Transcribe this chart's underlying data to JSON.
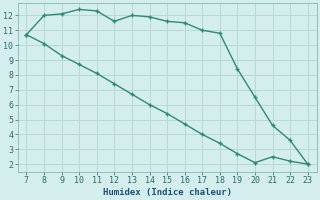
{
  "x_upper": [
    7,
    8,
    9,
    10,
    11,
    12,
    13,
    14,
    15,
    16,
    17,
    18,
    19,
    20,
    21,
    22,
    23
  ],
  "y_upper": [
    10.7,
    12.0,
    12.1,
    12.4,
    12.3,
    11.6,
    12.0,
    11.9,
    11.6,
    11.5,
    11.0,
    10.8,
    8.4,
    6.5,
    4.6,
    3.6,
    2.0
  ],
  "x_lower": [
    7,
    8,
    9,
    10,
    11,
    12,
    13,
    14,
    15,
    16,
    17,
    18,
    19,
    20,
    21,
    22,
    23
  ],
  "y_lower": [
    10.7,
    10.1,
    9.3,
    8.7,
    8.1,
    7.4,
    6.7,
    6.0,
    5.4,
    4.7,
    4.0,
    3.4,
    2.7,
    2.1,
    2.5,
    2.2,
    2.0
  ],
  "line_color": "#2e8b71",
  "bg_color": "#d4eeee",
  "grid_color": "#b8d8d8",
  "xlabel": "Humidex (Indice chaleur)",
  "xlabel_color": "#1a5276",
  "ylim": [
    1.5,
    12.8
  ],
  "xlim": [
    6.5,
    23.5
  ],
  "yticks": [
    2,
    3,
    4,
    5,
    6,
    7,
    8,
    9,
    10,
    11,
    12
  ],
  "xticks": [
    7,
    8,
    9,
    10,
    11,
    12,
    13,
    14,
    15,
    16,
    17,
    18,
    19,
    20,
    21,
    22,
    23
  ],
  "tick_color": "#2e6b6b",
  "marker": "+",
  "markersize": 3.5,
  "linewidth": 1.0
}
